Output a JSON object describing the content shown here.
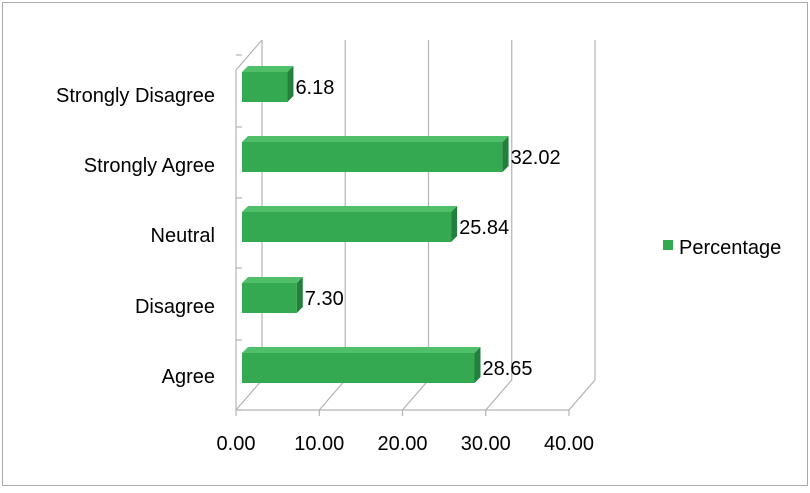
{
  "chart_data": {
    "type": "bar",
    "orientation": "horizontal",
    "style": "3d",
    "categories": [
      "Strongly Disagree",
      "Strongly Agree",
      "Neutral",
      "Disagree",
      "Agree"
    ],
    "series": [
      {
        "name": "Percentage",
        "values": [
          6.18,
          32.02,
          25.84,
          7.3,
          28.65
        ]
      }
    ],
    "data_labels": [
      "6.18",
      "32.02",
      "25.84",
      "7.30",
      "28.65"
    ],
    "x_ticks": [
      "0.00",
      "10.00",
      "20.00",
      "30.00",
      "40.00"
    ],
    "xlim": [
      0,
      40
    ],
    "grid": true,
    "legend_position": "right",
    "colors": {
      "bar_front": "#35a852",
      "bar_top": "#4fbf69",
      "bar_side": "#23803c",
      "grid": "#b3b3b3",
      "frame": "#aaaaaa"
    }
  }
}
